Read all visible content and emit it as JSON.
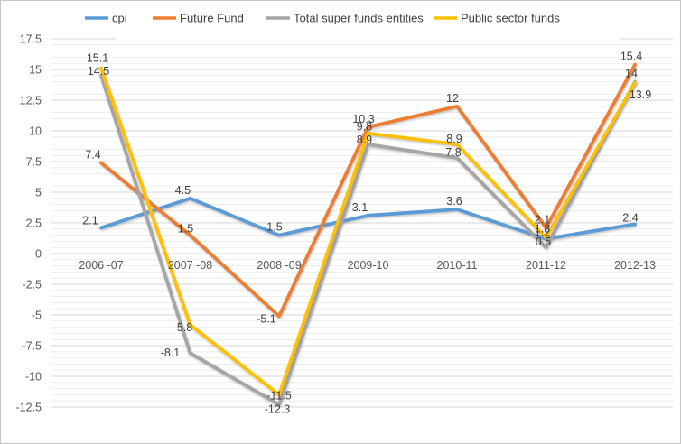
{
  "chart_data": {
    "type": "line",
    "title": "",
    "xlabel": "",
    "ylabel": "",
    "categories": [
      "2006 -07",
      "2007 -08",
      "2008 -09",
      "2009-10",
      "2010-11",
      "2011-12",
      "2012-13"
    ],
    "series": [
      {
        "name": "cpi",
        "color": "#5B9BD5",
        "values": [
          2.1,
          4.5,
          1.5,
          3.1,
          3.6,
          1.2,
          2.4
        ],
        "labels": [
          "2.1",
          "4.5",
          "1.5",
          "3.1",
          "3.6",
          "1.2",
          "2.4"
        ]
      },
      {
        "name": "Future Fund",
        "color": "#ED7D31",
        "values": [
          7.4,
          1.5,
          -5.1,
          10.3,
          12,
          2.1,
          15.4
        ],
        "labels": [
          "7.4",
          "1.5",
          "-5.1",
          "10.3",
          "12",
          "2.1",
          "15.4"
        ]
      },
      {
        "name": "Total super funds entities",
        "color": "#A5A5A5",
        "values": [
          14.5,
          -8.1,
          -12.3,
          8.9,
          7.8,
          0.5,
          14
        ],
        "labels": [
          "14.5",
          "-8.1",
          "-12.3",
          "8.9",
          "7.8",
          "0.5",
          "14"
        ]
      },
      {
        "name": "Public sector funds",
        "color": "#FFC000",
        "values": [
          15.1,
          -5.8,
          -11.5,
          9.8,
          8.9,
          1.3,
          13.9
        ],
        "labels": [
          "15.1",
          "-5.8",
          "-11.5",
          "9.8",
          "8.9",
          "1.3",
          "13.9"
        ]
      }
    ],
    "y_axis": {
      "min": -12.5,
      "max": 17.5,
      "major_step": 2.5,
      "minor_step": 0.5,
      "tick_labels": [
        "17.5",
        "15",
        "12.5",
        "10",
        "7.5",
        "5",
        "2.5",
        "0",
        "-2.5",
        "-5",
        "-7.5",
        "-10",
        "-12.5"
      ]
    },
    "legend_position": "top",
    "grid": true,
    "data_labels_shown": true,
    "colors": {
      "major_gridline": "#d6d6d6",
      "minor_gridline": "#ededed",
      "axis_text": "#595959",
      "label_text": "#3d3d3d",
      "background": "#ffffff"
    }
  }
}
